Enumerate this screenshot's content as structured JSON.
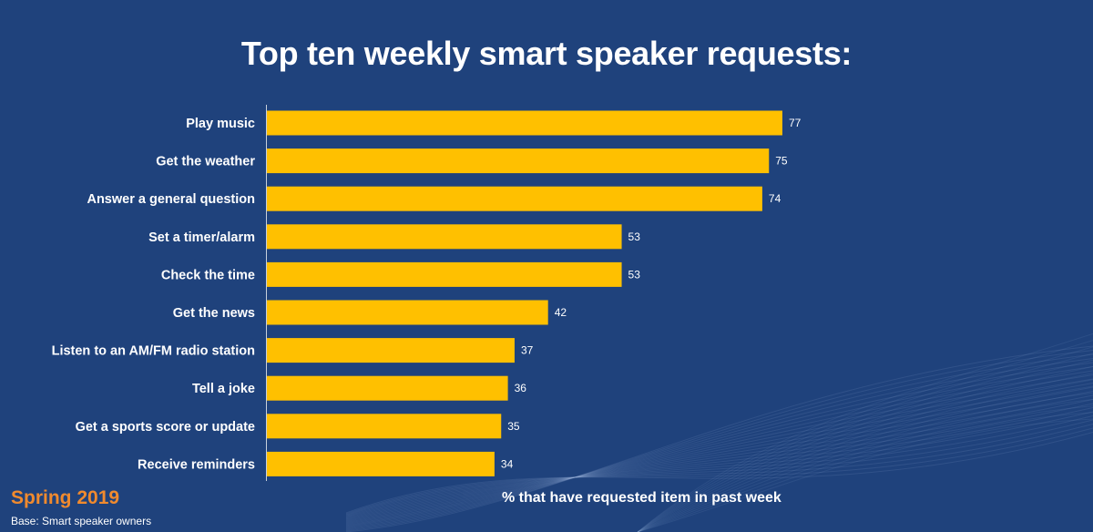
{
  "chart_data": {
    "type": "bar",
    "orientation": "horizontal",
    "title": "Top ten weekly smart speaker requests:",
    "xlabel": "% that have requested item in past week",
    "categories": [
      "Play music",
      "Get the weather",
      "Answer a general question",
      "Set a timer/alarm",
      "Check the time",
      "Get the news",
      "Listen to an AM/FM radio station",
      "Tell a joke",
      "Get a sports score or update",
      "Receive reminders"
    ],
    "values": [
      77,
      75,
      74,
      53,
      53,
      42,
      37,
      36,
      35,
      34
    ],
    "xlim": [
      0,
      100
    ],
    "grid": false,
    "bar_color": "#ffc000",
    "label_color": "#ffffff"
  },
  "footer": {
    "season": "Spring 2019",
    "base": "Base: Smart speaker owners"
  },
  "colors": {
    "background": "#1f427c",
    "accent": "#f08a2e"
  }
}
